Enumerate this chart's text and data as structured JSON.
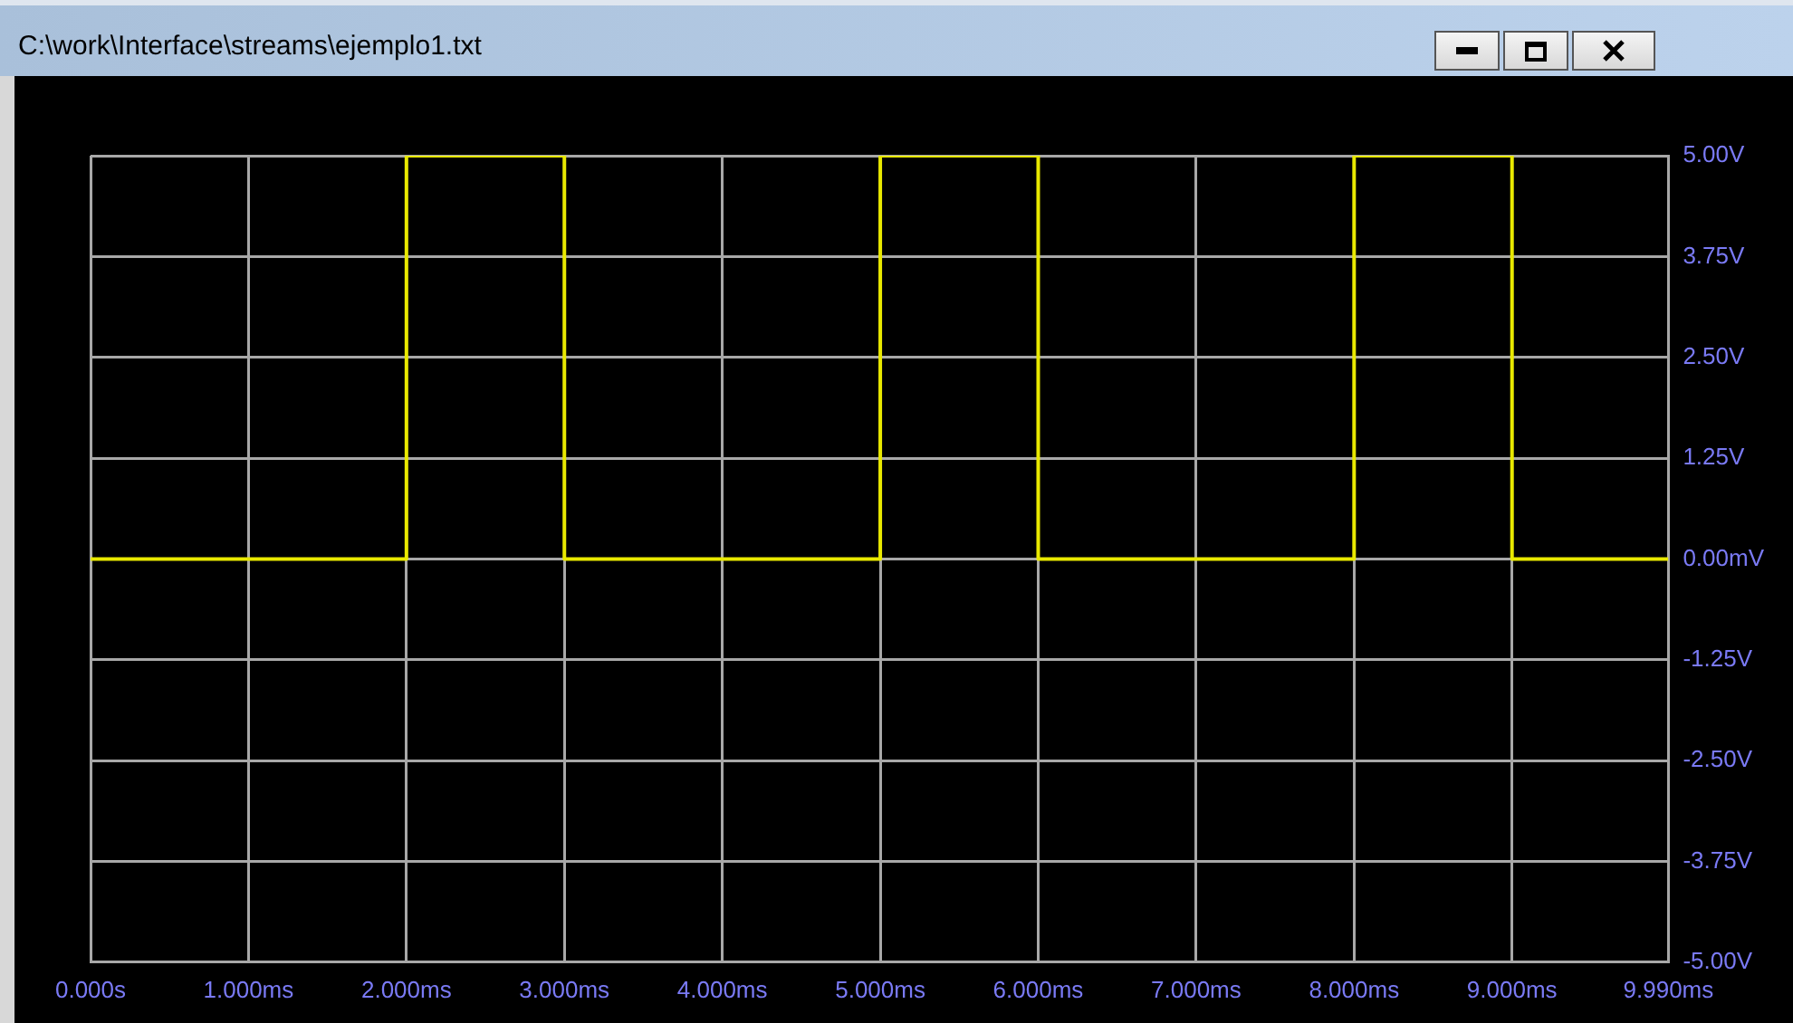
{
  "chart_data": {
    "type": "line",
    "title": "C:\\work\\Interface\\streams\\ejemplo1.txt",
    "x": [
      0,
      2,
      2,
      3,
      3,
      5,
      5,
      6,
      6,
      8,
      8,
      9,
      9,
      9.99
    ],
    "series": [
      {
        "color": "#e8e800",
        "values": [
          0,
          0,
          5,
          5,
          0,
          0,
          5,
          5,
          0,
          0,
          5,
          5,
          0,
          0
        ]
      }
    ],
    "xlim": [
      0,
      9.99
    ],
    "xticks": [
      {
        "value": 0,
        "label": "0.000s"
      },
      {
        "value": 1,
        "label": "1.000ms"
      },
      {
        "value": 2,
        "label": "2.000ms"
      },
      {
        "value": 3,
        "label": "3.000ms"
      },
      {
        "value": 4,
        "label": "4.000ms"
      },
      {
        "value": 5,
        "label": "5.000ms"
      },
      {
        "value": 6,
        "label": "6.000ms"
      },
      {
        "value": 7,
        "label": "7.000ms"
      },
      {
        "value": 8,
        "label": "8.000ms"
      },
      {
        "value": 9,
        "label": "9.000ms"
      },
      {
        "value": 9.99,
        "label": "9.990ms"
      }
    ],
    "ylim": [
      -5,
      5
    ],
    "yticks": [
      {
        "value": 5,
        "label": "5.00V"
      },
      {
        "value": 3.75,
        "label": "3.75V"
      },
      {
        "value": 2.5,
        "label": "2.50V"
      },
      {
        "value": 1.25,
        "label": "1.25V"
      },
      {
        "value": 0,
        "label": "0.00mV"
      },
      {
        "value": -1.25,
        "label": "-1.25V"
      },
      {
        "value": -2.5,
        "label": "-2.50V"
      },
      {
        "value": -3.75,
        "label": "-3.75V"
      },
      {
        "value": -5,
        "label": "-5.00V"
      }
    ],
    "grid": true,
    "legend": false
  }
}
